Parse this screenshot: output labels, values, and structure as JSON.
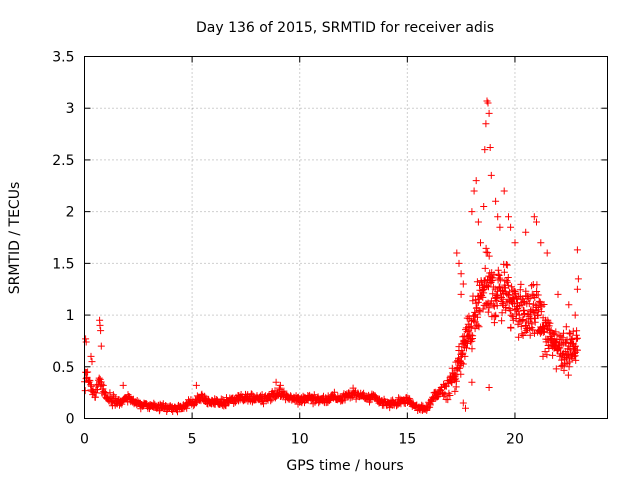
{
  "chart_data": {
    "type": "scatter",
    "title": "Day 136 of 2015, SRMTID for receiver adis",
    "xlabel": "GPS time / hours",
    "ylabel": "SRMTID / TECUs",
    "xlim": [
      0,
      24.3
    ],
    "ylim": [
      0,
      3.5
    ],
    "xticks": [
      0,
      5,
      10,
      15,
      20
    ],
    "yticks": [
      0,
      0.5,
      1,
      1.5,
      2,
      2.5,
      3,
      3.5
    ],
    "xtick_labels": [
      "0",
      "5",
      "10",
      "15",
      "20"
    ],
    "ytick_labels": [
      "0",
      "0.5",
      "1",
      "1.5",
      "2",
      "2.5",
      "3",
      "3.5"
    ],
    "grid": true,
    "marker": "+",
    "series_color": "#ff0000",
    "series": [
      {
        "name": "SRMTID",
        "trend": [
          [
            0.0,
            0.3
          ],
          [
            0.1,
            0.42
          ],
          [
            0.2,
            0.38
          ],
          [
            0.3,
            0.3
          ],
          [
            0.5,
            0.25
          ],
          [
            0.7,
            0.4
          ],
          [
            0.9,
            0.25
          ],
          [
            1.2,
            0.17
          ],
          [
            1.6,
            0.15
          ],
          [
            2.0,
            0.2
          ],
          [
            2.5,
            0.14
          ],
          [
            3.0,
            0.12
          ],
          [
            3.5,
            0.11
          ],
          [
            4.0,
            0.1
          ],
          [
            4.5,
            0.11
          ],
          [
            5.0,
            0.15
          ],
          [
            5.5,
            0.2
          ],
          [
            6.0,
            0.15
          ],
          [
            6.5,
            0.16
          ],
          [
            7.0,
            0.18
          ],
          [
            7.5,
            0.2
          ],
          [
            8.0,
            0.2
          ],
          [
            8.5,
            0.2
          ],
          [
            9.0,
            0.25
          ],
          [
            9.5,
            0.2
          ],
          [
            10.0,
            0.18
          ],
          [
            10.5,
            0.2
          ],
          [
            11.0,
            0.18
          ],
          [
            11.5,
            0.2
          ],
          [
            12.0,
            0.2
          ],
          [
            12.5,
            0.24
          ],
          [
            13.0,
            0.22
          ],
          [
            13.5,
            0.2
          ],
          [
            14.0,
            0.14
          ],
          [
            14.5,
            0.15
          ],
          [
            15.0,
            0.18
          ],
          [
            15.5,
            0.1
          ],
          [
            15.8,
            0.08
          ],
          [
            16.2,
            0.2
          ],
          [
            16.8,
            0.28
          ],
          [
            17.2,
            0.4
          ],
          [
            17.5,
            0.6
          ],
          [
            17.8,
            0.8
          ],
          [
            18.2,
            1.0
          ],
          [
            18.6,
            1.3
          ],
          [
            19.0,
            1.2
          ],
          [
            19.5,
            1.25
          ],
          [
            20.0,
            1.1
          ],
          [
            20.5,
            1.0
          ],
          [
            21.0,
            1.05
          ],
          [
            21.5,
            0.8
          ],
          [
            22.0,
            0.7
          ],
          [
            22.5,
            0.65
          ],
          [
            22.9,
            0.7
          ]
        ],
        "spread": [
          [
            0.0,
            0.12
          ],
          [
            1.0,
            0.08
          ],
          [
            2.0,
            0.05
          ],
          [
            5.0,
            0.06
          ],
          [
            9.0,
            0.06
          ],
          [
            13.0,
            0.07
          ],
          [
            15.5,
            0.05
          ],
          [
            16.5,
            0.08
          ],
          [
            17.5,
            0.25
          ],
          [
            18.5,
            0.45
          ],
          [
            19.5,
            0.4
          ],
          [
            21.0,
            0.35
          ],
          [
            22.0,
            0.3
          ],
          [
            22.9,
            0.25
          ]
        ],
        "peaks": [
          [
            0.05,
            0.77
          ],
          [
            0.08,
            0.74
          ],
          [
            0.3,
            0.6
          ],
          [
            0.35,
            0.55
          ],
          [
            0.7,
            0.95
          ],
          [
            0.72,
            0.9
          ],
          [
            0.75,
            0.85
          ],
          [
            0.78,
            0.7
          ],
          [
            1.8,
            0.32
          ],
          [
            5.2,
            0.32
          ],
          [
            8.9,
            0.35
          ],
          [
            9.1,
            0.32
          ],
          [
            17.3,
            1.6
          ],
          [
            17.4,
            1.5
          ],
          [
            17.5,
            1.4
          ],
          [
            17.6,
            1.3
          ],
          [
            17.5,
            1.2
          ],
          [
            18.0,
            2.0
          ],
          [
            18.1,
            2.2
          ],
          [
            18.2,
            2.3
          ],
          [
            18.3,
            1.9
          ],
          [
            18.4,
            1.7
          ],
          [
            18.55,
            2.05
          ],
          [
            18.6,
            2.6
          ],
          [
            18.65,
            2.85
          ],
          [
            18.7,
            3.07
          ],
          [
            18.75,
            3.05
          ],
          [
            18.8,
            2.95
          ],
          [
            18.85,
            2.62
          ],
          [
            18.9,
            2.35
          ],
          [
            19.1,
            2.1
          ],
          [
            19.2,
            1.95
          ],
          [
            19.3,
            1.85
          ],
          [
            19.5,
            2.2
          ],
          [
            19.7,
            1.95
          ],
          [
            19.8,
            1.85
          ],
          [
            20.0,
            1.7
          ],
          [
            20.5,
            1.8
          ],
          [
            20.9,
            1.95
          ],
          [
            21.0,
            1.9
          ],
          [
            21.2,
            1.7
          ],
          [
            21.5,
            1.6
          ],
          [
            22.0,
            1.2
          ],
          [
            22.5,
            1.1
          ],
          [
            22.9,
            1.63
          ],
          [
            22.95,
            1.35
          ],
          [
            22.9,
            1.25
          ],
          [
            22.8,
            1.0
          ],
          [
            17.6,
            0.15
          ],
          [
            17.7,
            0.1
          ],
          [
            18.0,
            0.35
          ],
          [
            18.8,
            0.3
          ]
        ]
      }
    ]
  }
}
